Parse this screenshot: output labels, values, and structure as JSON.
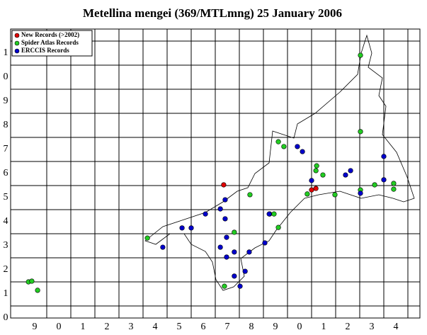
{
  "chart_data": {
    "type": "scatter",
    "title": "Metellina mengei (369/MTLmng) 25 January 2006",
    "xlim": [
      0,
      17
    ],
    "ylim": [
      0,
      12
    ],
    "xticks": [
      {
        "value": 1,
        "label": "9"
      },
      {
        "value": 2,
        "label": "0"
      },
      {
        "value": 3,
        "label": "1"
      },
      {
        "value": 4,
        "label": "2"
      },
      {
        "value": 5,
        "label": "3"
      },
      {
        "value": 6,
        "label": "4"
      },
      {
        "value": 7,
        "label": "5"
      },
      {
        "value": 8,
        "label": "6"
      },
      {
        "value": 9,
        "label": "7"
      },
      {
        "value": 10,
        "label": "8"
      },
      {
        "value": 11,
        "label": "9"
      },
      {
        "value": 12,
        "label": "0"
      },
      {
        "value": 13,
        "label": "1"
      },
      {
        "value": 14,
        "label": "2"
      },
      {
        "value": 15,
        "label": "3"
      },
      {
        "value": 16,
        "label": "4"
      }
    ],
    "yticks": [
      0,
      1,
      2,
      3,
      4,
      5,
      6,
      7,
      8,
      9,
      {
        "value": 10,
        "label": "0"
      },
      {
        "value": 11,
        "label": "1"
      }
    ],
    "grid": true,
    "legend": "upper left",
    "series": [
      {
        "name": "New Records (>2002)",
        "color": "#e00000",
        "x": [
          8.85,
          12.5,
          12.68
        ],
        "values": [
          5.53,
          5.32,
          5.38
        ]
      },
      {
        "name": "Spider Atlas Records",
        "color": "#22cc22",
        "x": [
          14.53,
          14.53,
          11.12,
          11.35,
          12.71,
          12.68,
          12.97,
          12.32,
          13.47,
          14.53,
          15.12,
          15.91,
          15.91,
          9.94,
          10.76,
          10.94,
          11.12,
          5.68,
          9.29,
          8.88,
          0.74,
          0.88,
          1.12
        ],
        "values": [
          10.91,
          7.74,
          7.32,
          7.12,
          6.32,
          6.12,
          5.94,
          5.15,
          5.12,
          5.32,
          5.53,
          5.59,
          5.35,
          5.12,
          4.32,
          4.32,
          3.76,
          3.32,
          3.56,
          1.32,
          1.5,
          1.53,
          1.15
        ]
      },
      {
        "name": "ERCCIS Records",
        "color": "#0000cc",
        "x": [
          11.91,
          12.12,
          12.5,
          13.91,
          14.12,
          15.5,
          15.5,
          14.53,
          8.91,
          8.71,
          8.09,
          10.74,
          7.12,
          7.5,
          8.91,
          6.32,
          8.71,
          8.97,
          9.29,
          8.97,
          9.91,
          10.56,
          9.29,
          9.53,
          9.74
        ],
        "values": [
          7.12,
          6.91,
          5.71,
          5.94,
          6.12,
          6.71,
          5.74,
          5.18,
          4.91,
          4.53,
          4.32,
          4.32,
          3.74,
          3.74,
          4.12,
          2.94,
          2.94,
          3.35,
          2.74,
          2.53,
          2.74,
          3.12,
          1.74,
          1.32,
          1.94
        ]
      }
    ]
  }
}
